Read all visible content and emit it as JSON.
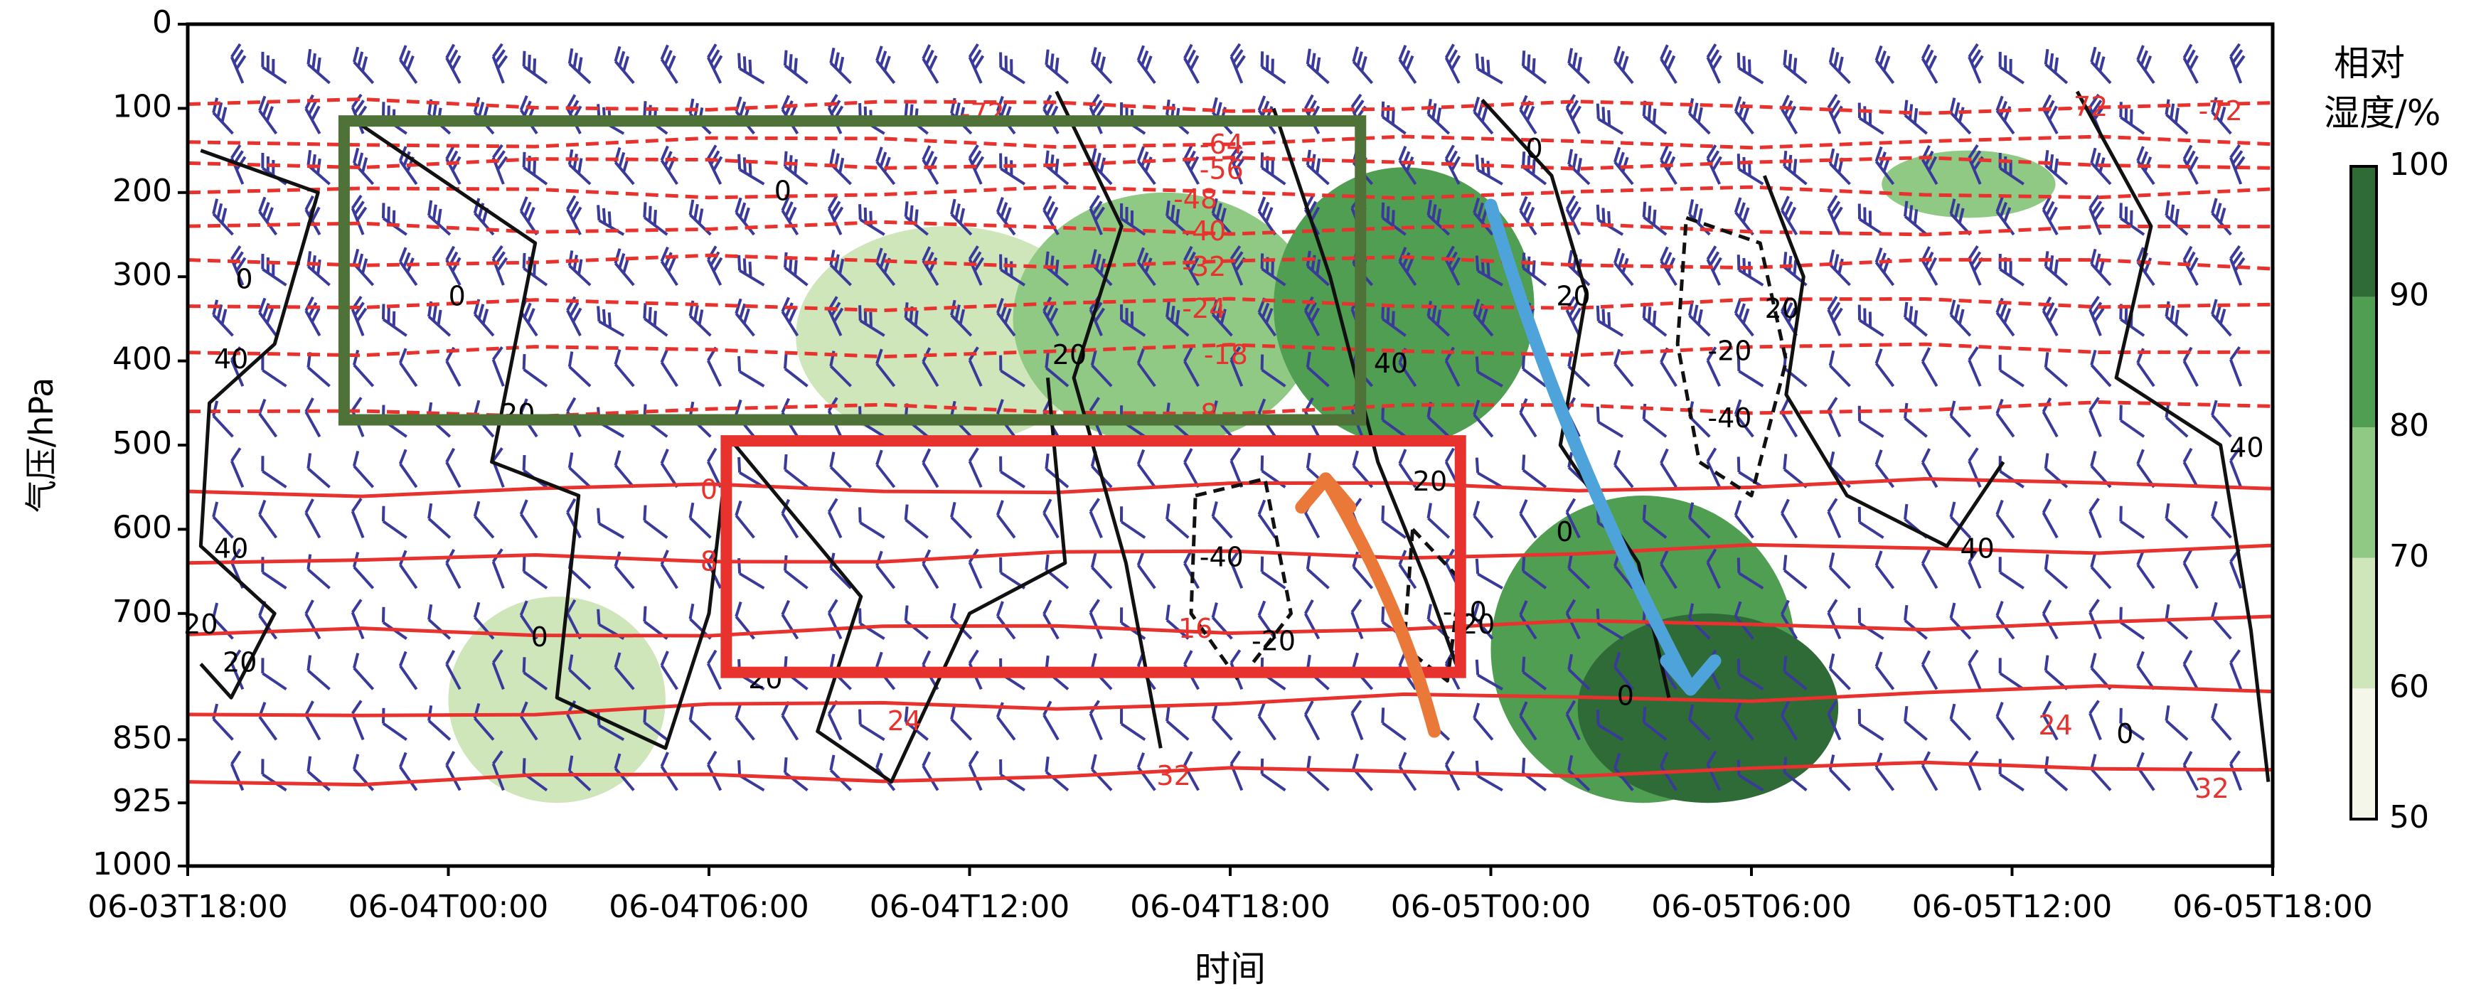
{
  "chart_data": {
    "type": "heatmap",
    "title": "",
    "xlabel": "时间",
    "ylabel": "气压/hPa",
    "x_ticks": [
      "06-03T18:00",
      "06-04T00:00",
      "06-04T06:00",
      "06-04T12:00",
      "06-04T18:00",
      "06-05T00:00",
      "06-05T06:00",
      "06-05T12:00",
      "06-05T18:00"
    ],
    "xlim": [
      "06-03T18:00",
      "06-05T18:00"
    ],
    "y_ticks": [
      0,
      100,
      200,
      300,
      400,
      500,
      600,
      700,
      850,
      925,
      1000
    ],
    "y_tick_labels": [
      "0",
      "100",
      "200",
      "300",
      "400",
      "500",
      "600",
      "700",
      "850",
      "925",
      "1000"
    ],
    "ylim": [
      1000,
      0
    ],
    "colorbar": {
      "title_line1": "相对",
      "title_line2": "湿度/%",
      "levels": [
        50,
        60,
        70,
        80,
        90,
        100
      ],
      "level_labels": [
        "50",
        "60",
        "70",
        "80",
        "90",
        "100"
      ],
      "colors": [
        "#f4f6ea",
        "#cfe6bb",
        "#8fc984",
        "#4f9e52",
        "#2e6b36"
      ]
    },
    "relative_humidity_regions": [
      {
        "level": 60,
        "x_hours": [
          6,
          11
        ],
        "p_range": [
          680,
          925
        ]
      },
      {
        "level": 60,
        "x_hours": [
          14,
          21
        ],
        "p_range": [
          240,
          500
        ]
      },
      {
        "level": 70,
        "x_hours": [
          19,
          26
        ],
        "p_range": [
          200,
          500
        ]
      },
      {
        "level": 80,
        "x_hours": [
          25,
          31
        ],
        "p_range": [
          170,
          500
        ]
      },
      {
        "level": 80,
        "x_hours": [
          30,
          37
        ],
        "p_range": [
          560,
          925
        ]
      },
      {
        "level": 90,
        "x_hours": [
          32,
          38
        ],
        "p_range": [
          700,
          925
        ]
      },
      {
        "level": 70,
        "x_hours": [
          39,
          43
        ],
        "p_range": [
          150,
          230
        ]
      }
    ],
    "temperature_isotherms": [
      {
        "value": -72,
        "label": "-72",
        "dashed": true,
        "p_start": 95,
        "p_end": 100
      },
      {
        "value": -64,
        "label": "-64",
        "dashed": true,
        "p_start": 140,
        "p_end": 140
      },
      {
        "value": -56,
        "label": "-56",
        "dashed": true,
        "p_start": 165,
        "p_end": 165
      },
      {
        "value": -48,
        "label": "-48",
        "dashed": true,
        "p_start": 200,
        "p_end": 200
      },
      {
        "value": -40,
        "label": "-40",
        "dashed": true,
        "p_start": 240,
        "p_end": 245
      },
      {
        "value": -32,
        "label": "-32",
        "dashed": true,
        "p_start": 280,
        "p_end": 285
      },
      {
        "value": -24,
        "label": "-24",
        "dashed": true,
        "p_start": 335,
        "p_end": 330
      },
      {
        "value": -18,
        "label": "-18",
        "dashed": true,
        "p_start": 390,
        "p_end": 385
      },
      {
        "value": -8,
        "label": "-8",
        "dashed": true,
        "p_start": 460,
        "p_end": 455
      },
      {
        "value": 0,
        "label": "0",
        "dashed": false,
        "p_start": 555,
        "p_end": 545
      },
      {
        "value": 8,
        "label": "8",
        "dashed": false,
        "p_start": 640,
        "p_end": 620
      },
      {
        "value": 16,
        "label": "16",
        "dashed": false,
        "p_start": 725,
        "p_end": 710
      },
      {
        "value": 24,
        "label": "24",
        "dashed": false,
        "p_start": 820,
        "p_end": 790
      },
      {
        "value": 32,
        "label": "32",
        "dashed": false,
        "p_start": 900,
        "p_end": 880
      }
    ],
    "isotherm_labels": [
      {
        "text": "-72",
        "x_hours": 18.3,
        "p": 108
      },
      {
        "text": "-72",
        "x_hours": 43.7,
        "p": 100
      },
      {
        "text": "-72",
        "x_hours": 46.8,
        "p": 105
      },
      {
        "text": "-64",
        "x_hours": 23.8,
        "p": 145
      },
      {
        "text": "-56",
        "x_hours": 23.8,
        "p": 175
      },
      {
        "text": "-48",
        "x_hours": 23.2,
        "p": 210
      },
      {
        "text": "-40",
        "x_hours": 23.4,
        "p": 248
      },
      {
        "text": "-32",
        "x_hours": 23.4,
        "p": 290
      },
      {
        "text": "-24",
        "x_hours": 23.4,
        "p": 340
      },
      {
        "text": "-18",
        "x_hours": 23.9,
        "p": 395
      },
      {
        "text": "-8",
        "x_hours": 23.4,
        "p": 465
      },
      {
        "text": "0",
        "x_hours": 12.0,
        "p": 555
      },
      {
        "text": "8",
        "x_hours": 12.0,
        "p": 640
      },
      {
        "text": "16",
        "x_hours": 23.2,
        "p": 720
      },
      {
        "text": "24",
        "x_hours": 16.5,
        "p": 830
      },
      {
        "text": "24",
        "x_hours": 43.0,
        "p": 835
      },
      {
        "text": "32",
        "x_hours": 22.7,
        "p": 895
      },
      {
        "text": "32",
        "x_hours": 46.6,
        "p": 910
      }
    ],
    "vertical_velocity_contours": [
      {
        "value": 20,
        "label": "20",
        "dashed": false
      },
      {
        "value": 0,
        "label": "0",
        "dashed": false
      },
      {
        "value": 40,
        "label": "40",
        "dashed": false
      },
      {
        "value": -20,
        "label": "-20",
        "dashed": true
      },
      {
        "value": -40,
        "label": "-40",
        "dashed": true
      }
    ],
    "contour_labels": [
      {
        "text": "0",
        "x_hours": 1.3,
        "p": 305
      },
      {
        "text": "40",
        "x_hours": 1.0,
        "p": 400
      },
      {
        "text": "40",
        "x_hours": 1.0,
        "p": 625
      },
      {
        "text": "20",
        "x_hours": 0.3,
        "p": 715
      },
      {
        "text": "20",
        "x_hours": 1.2,
        "p": 760
      },
      {
        "text": "0",
        "x_hours": 6.2,
        "p": 325
      },
      {
        "text": "20",
        "x_hours": 7.6,
        "p": 465
      },
      {
        "text": "0",
        "x_hours": 8.1,
        "p": 730
      },
      {
        "text": "0",
        "x_hours": 13.7,
        "p": 200
      },
      {
        "text": "20",
        "x_hours": 13.3,
        "p": 780
      },
      {
        "text": "20",
        "x_hours": 20.3,
        "p": 395
      },
      {
        "text": "-40",
        "x_hours": 23.8,
        "p": 635
      },
      {
        "text": "-20",
        "x_hours": 25.0,
        "p": 735
      },
      {
        "text": "40",
        "x_hours": 27.7,
        "p": 405
      },
      {
        "text": "20",
        "x_hours": 28.6,
        "p": 545
      },
      {
        "text": "-40",
        "x_hours": 29.4,
        "p": 700
      },
      {
        "text": "20",
        "x_hours": 29.7,
        "p": 715
      },
      {
        "text": "0",
        "x_hours": 31.0,
        "p": 150
      },
      {
        "text": "20",
        "x_hours": 31.9,
        "p": 325
      },
      {
        "text": "0",
        "x_hours": 31.7,
        "p": 605
      },
      {
        "text": "0",
        "x_hours": 33.1,
        "p": 800
      },
      {
        "text": "-20",
        "x_hours": 35.5,
        "p": 390
      },
      {
        "text": "-40",
        "x_hours": 35.5,
        "p": 470
      },
      {
        "text": "20",
        "x_hours": 36.7,
        "p": 340
      },
      {
        "text": "40",
        "x_hours": 41.2,
        "p": 625
      },
      {
        "text": "0",
        "x_hours": 44.6,
        "p": 845
      },
      {
        "text": "40",
        "x_hours": 47.4,
        "p": 505
      }
    ],
    "annotations": [
      {
        "type": "box",
        "color": "#4e7237",
        "x_hours": [
          3.6,
          27.0
        ],
        "p_range": [
          115,
          470
        ]
      },
      {
        "type": "box",
        "color": "#e8322d",
        "x_hours": [
          12.4,
          29.3
        ],
        "p_range": [
          495,
          770
        ]
      },
      {
        "type": "arrow",
        "color": "#ea7838",
        "direction": "upward",
        "x_hours": [
          28.7,
          26.2
        ],
        "p_range": [
          840,
          540
        ]
      },
      {
        "type": "arrow",
        "color": "#4ea3da",
        "direction": "downward",
        "x_hours": [
          30.0,
          34.6
        ],
        "p_range": [
          215,
          790
        ]
      }
    ],
    "wind_barbs": "horizontal wind barbs plotted at each time and pressure level",
    "colors": {
      "temperature": "#e8322d",
      "vertical_velocity": "#111111",
      "wind_barbs": "#3a3a9a",
      "frame": "#000000"
    }
  }
}
